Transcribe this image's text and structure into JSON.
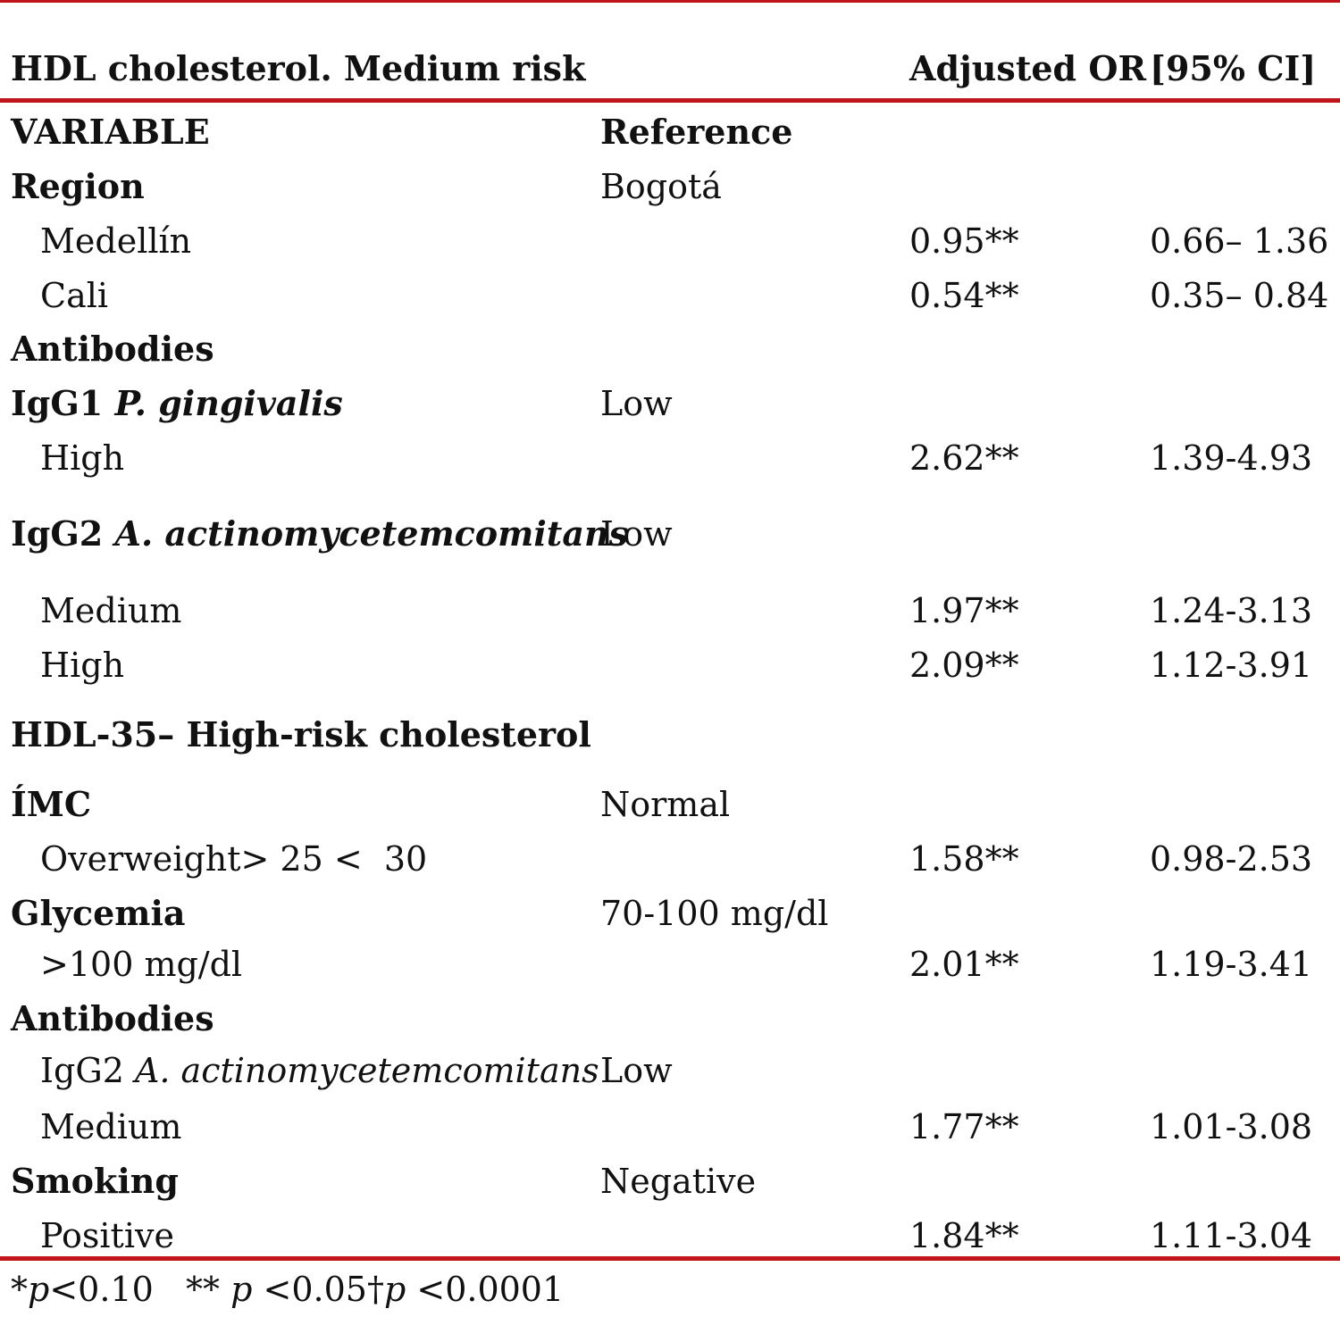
{
  "header": {
    "title": "HDL cholesterol. Medium risk",
    "col_or": "Adjusted OR",
    "col_ci": "[95% CI]"
  },
  "subheader": {
    "variable": "VARIABLE",
    "reference": "Reference"
  },
  "rows": [
    {
      "label": "Region",
      "bold": true,
      "reference": "Bogotá"
    },
    {
      "label": "Medellín",
      "indent": true,
      "or": "0.95**",
      "ci": "0.66– 1.36"
    },
    {
      "label": "Cali",
      "indent": true,
      "or": "0.54**",
      "ci": "0.35– 0.84"
    },
    {
      "label": "Antibodies",
      "bold": true
    },
    {
      "label": "IgG1 ",
      "italic": "P. gingivalis",
      "bold": true,
      "reference": "Low"
    },
    {
      "label": "High",
      "indent": true,
      "or": "2.62**",
      "ci": "1.39-4.93"
    },
    {
      "label": "IgG2 ",
      "italic": "A. actinomycetemcomitans",
      "bold": true,
      "reference": "Low"
    },
    {
      "label": "Medium",
      "indent": true,
      "or": "1.97**",
      "ci": "1.24-3.13"
    },
    {
      "label": "High",
      "indent": true,
      "or": "2.09**",
      "ci": "1.12-3.91"
    },
    {
      "label": "HDL-35– High-risk cholesterol",
      "bold": true
    },
    {
      "label": "ÍMC",
      "bold": true,
      "reference": "Normal"
    },
    {
      "label": "Overweight> 25 <  30",
      "indent": true,
      "or": "1.58**",
      "ci": "0.98-2.53"
    },
    {
      "label": "Glycemia",
      "bold": true,
      "reference": "70-100 mg/dl"
    },
    {
      "label": ">100 mg/dl",
      "indent": true,
      "or": "2.01**",
      "ci": "1.19-3.41"
    },
    {
      "label": "Antibodies",
      "bold": true
    },
    {
      "label": "IgG2 ",
      "italic": "A. actinomycetemcomitans",
      "indent": true,
      "reference": "Low"
    },
    {
      "label": "Medium",
      "indent": true,
      "or": "1.77**",
      "ci": "1.01-3.08"
    },
    {
      "label": "Smoking",
      "bold": true,
      "reference": "Negative"
    },
    {
      "label": "Positive",
      "indent": true,
      "or": "1.84**",
      "ci": "1.11-3.04"
    }
  ],
  "footnote": {
    "s1": "*",
    "p1": "p",
    "t1": "<0.10   ** ",
    "p2": "p",
    "t2": " <0.05†",
    "p3": "p",
    "t3": " <0.0001"
  },
  "colors": {
    "rule": "#c0151b",
    "text": "#111111"
  }
}
